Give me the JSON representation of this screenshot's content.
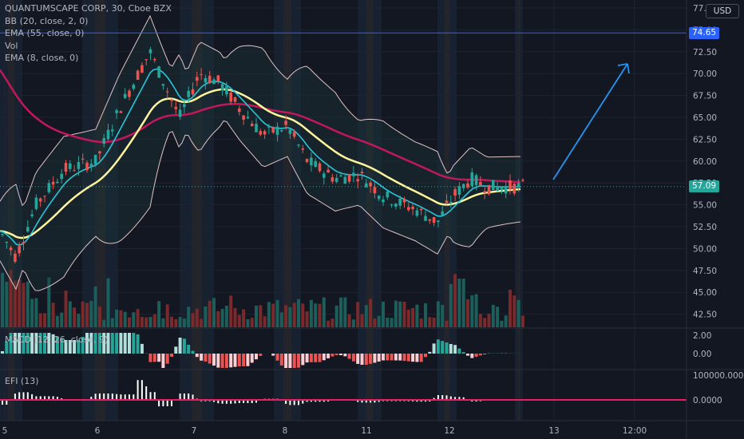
{
  "legend": {
    "symbol": "QUANTUMSCAPE CORP, 30, Cboe BZX",
    "bb": "BB (20, close, 2, 0)",
    "ema55": "EMA (55, close, 0)",
    "vol": "Vol",
    "ema8": "EMA (8, close, 0)",
    "macd": "MACD (12, 26, close, 9)",
    "efi": "EFI (13)"
  },
  "price_tags": {
    "resistance": "74.65",
    "last": "57.09",
    "currency": "USD"
  },
  "colors": {
    "up": "#26a69a",
    "down": "#ef5350",
    "bb": "#e0c4c4",
    "ema55": "#c2185b",
    "ema8": "#26c6da",
    "ema_slow": "#fff59d",
    "arrow": "#2196f3",
    "efi": "#e91e63"
  },
  "chart_data": [
    {
      "type": "candlestick",
      "y_ticks": [
        "77.50",
        "75.00",
        "72.50",
        "70.00",
        "67.50",
        "65.00",
        "62.50",
        "60.00",
        "57.50",
        "55.00",
        "52.50",
        "50.00",
        "47.50",
        "45.00",
        "42.50"
      ],
      "y_range": [
        41,
        78
      ],
      "x_ticks": [
        "5",
        "6",
        "7",
        "8",
        "11",
        "12",
        "13",
        "12:00"
      ],
      "horizontal_line": 74.65,
      "last_price": 57.09,
      "annotation": "upward arrow"
    },
    {
      "type": "bar",
      "name": "MACD",
      "y_ticks": [
        "2.00",
        "0.00"
      ]
    },
    {
      "type": "bar",
      "name": "EFI",
      "y_ticks": [
        "100000.0000",
        "0.0000"
      ]
    }
  ]
}
